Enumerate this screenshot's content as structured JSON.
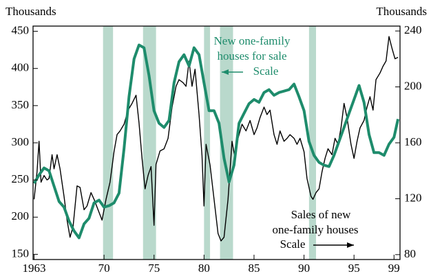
{
  "chart_data": {
    "type": "line",
    "y_label": "Thousands",
    "y2_label": "Thousands",
    "xlim": [
      1962.9,
      1999.6
    ],
    "xticks": [
      1963,
      {
        "value": 1970,
        "label": "70"
      },
      {
        "value": 1975,
        "label": "75"
      },
      {
        "value": 1980,
        "label": "80"
      },
      {
        "value": 1985,
        "label": "85"
      },
      {
        "value": 1990,
        "label": "90"
      },
      {
        "value": 1995,
        "label": "95"
      },
      {
        "value": 1999,
        "label": "99"
      }
    ],
    "ylim": [
      143,
      457
    ],
    "yticks": [
      150,
      200,
      250,
      300,
      350,
      400,
      450
    ],
    "y2lim": [
      76.5,
      243.5
    ],
    "y2ticks": [
      80,
      120,
      160,
      200,
      240
    ],
    "recessions": [
      [
        1969.9,
        1970.9
      ],
      [
        1973.9,
        1975.2
      ],
      [
        1980.0,
        1980.6
      ],
      [
        1981.6,
        1982.9
      ],
      [
        1990.5,
        1991.2
      ]
    ],
    "recession_color": "#b9d9cc",
    "series": [
      {
        "name": "Sales of new one-family houses",
        "color": "#000000",
        "axis": "y",
        "width": 1.4,
        "x": [
          1963,
          1963.3,
          1963.5,
          1963.7,
          1964,
          1964.3,
          1964.5,
          1964.8,
          1965.0,
          1965.3,
          1965.6,
          1966.0,
          1966.3,
          1966.6,
          1966.9,
          1967.3,
          1967.6,
          1968.0,
          1968.3,
          1968.7,
          1969.0,
          1969.4,
          1969.8,
          1970.2,
          1970.6,
          1971.0,
          1971.3,
          1971.6,
          1972.0,
          1972.4,
          1972.8,
          1973.2,
          1973.5,
          1973.8,
          1974.1,
          1974.4,
          1974.7,
          1975.0,
          1975.2,
          1975.6,
          1976.0,
          1976.4,
          1976.8,
          1977.2,
          1977.5,
          1977.9,
          1978.2,
          1978.5,
          1978.8,
          1979.1,
          1979.5,
          1979.8,
          1980.0,
          1980.2,
          1980.6,
          1981.0,
          1981.4,
          1981.7,
          1982.0,
          1982.4,
          1982.8,
          1983.1,
          1983.4,
          1983.8,
          1984.2,
          1984.6,
          1985.0,
          1985.3,
          1985.6,
          1986.0,
          1986.3,
          1986.6,
          1987.0,
          1987.3,
          1987.6,
          1988.0,
          1988.3,
          1988.6,
          1989.0,
          1989.3,
          1989.6,
          1990.0,
          1990.3,
          1990.7,
          1990.9,
          1991.2,
          1991.5,
          1991.8,
          1992.1,
          1992.4,
          1992.8,
          1993.1,
          1993.4,
          1993.7,
          1994.0,
          1994.3,
          1994.7,
          1995.0,
          1995.3,
          1995.6,
          1996.0,
          1996.3,
          1996.6,
          1996.9,
          1997.2,
          1997.6,
          1997.9,
          1998.2,
          1998.5,
          1998.8,
          1999.1,
          1999.4
        ],
        "values": [
          224,
          261,
          302,
          247,
          256,
          250,
          252,
          284,
          265,
          284,
          265,
          228,
          196,
          173,
          187,
          242,
          240,
          210,
          215,
          233,
          224,
          210,
          196,
          224,
          247,
          288,
          311,
          316,
          325,
          344,
          353,
          364,
          327,
          279,
          238,
          256,
          268,
          189,
          271,
          289,
          292,
          306,
          348,
          376,
          385,
          381,
          376,
          410,
          376,
          399,
          338,
          283,
          215,
          298,
          270,
          224,
          178,
          168,
          173,
          224,
          302,
          279,
          306,
          325,
          316,
          330,
          311,
          320,
          334,
          348,
          338,
          344,
          311,
          298,
          316,
          302,
          306,
          311,
          306,
          298,
          306,
          288,
          252,
          228,
          224,
          233,
          238,
          261,
          279,
          292,
          284,
          306,
          298,
          320,
          353,
          334,
          298,
          279,
          302,
          320,
          330,
          348,
          362,
          344,
          385,
          394,
          403,
          410,
          443,
          427,
          413,
          415
        ]
      },
      {
        "name": "New one-family houses for sale",
        "color": "#1e8c6c",
        "axis": "y2",
        "width": 4,
        "x": [
          1963,
          1963.5,
          1964,
          1964.5,
          1965,
          1965.5,
          1966,
          1966.5,
          1967,
          1967.5,
          1968,
          1968.5,
          1969,
          1969.5,
          1970,
          1970.5,
          1971,
          1971.5,
          1972,
          1972.5,
          1973,
          1973.5,
          1974,
          1974.5,
          1975,
          1975.5,
          1976,
          1976.5,
          1977,
          1977.5,
          1978,
          1978.5,
          1979,
          1979.5,
          1980,
          1980.5,
          1981,
          1981.5,
          1982,
          1982.5,
          1983,
          1983.5,
          1984,
          1984.5,
          1985,
          1985.5,
          1986,
          1986.5,
          1987,
          1987.5,
          1988,
          1988.5,
          1989,
          1989.5,
          1990,
          1990.5,
          1991,
          1991.5,
          1992,
          1992.5,
          1993,
          1993.5,
          1994,
          1994.5,
          1995,
          1995.5,
          1996,
          1996.5,
          1997,
          1997.5,
          1998,
          1998.5,
          1999,
          1999.4
        ],
        "values": [
          131,
          137,
          142,
          140,
          129,
          118,
          114,
          104,
          97,
          92,
          102,
          106,
          117,
          119,
          114,
          115,
          117,
          124,
          156,
          193,
          220,
          230,
          228,
          208,
          183,
          174,
          171,
          176,
          203,
          218,
          223,
          215,
          228,
          223,
          203,
          183,
          183,
          174,
          149,
          132,
          144,
          174,
          181,
          188,
          191,
          189,
          196,
          198,
          194,
          196,
          197,
          198,
          202,
          193,
          183,
          161,
          151,
          146,
          144,
          143,
          151,
          161,
          171,
          181,
          191,
          201,
          189,
          166,
          153,
          153,
          151,
          159,
          164,
          177
        ]
      }
    ],
    "annotations": [
      {
        "lines": [
          "New one-family",
          "houses for sale",
          "Scale"
        ],
        "color": "#1e8c6c"
      },
      {
        "lines": [
          "Sales of new",
          "one-family houses",
          "Scale"
        ],
        "color": "#000000"
      }
    ]
  }
}
